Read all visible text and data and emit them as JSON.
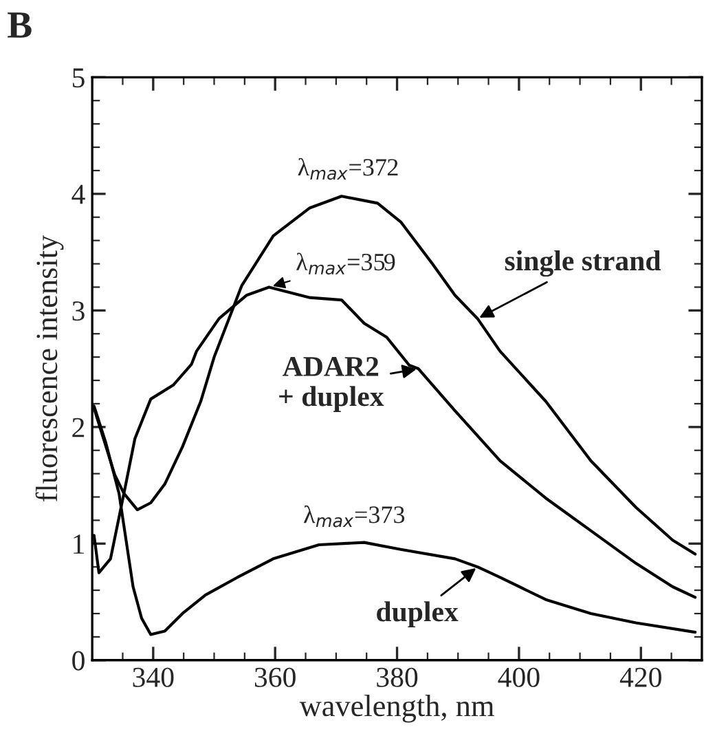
{
  "chart_data": {
    "type": "line",
    "title": "B",
    "xlabel": "wavelength, nm",
    "ylabel": "fluorescence intensity",
    "xlim": [
      330,
      430
    ],
    "xticks": [
      340,
      360,
      380,
      400,
      420
    ],
    "ylim": [
      0,
      5
    ],
    "yticks": [
      0,
      1,
      2,
      3,
      4,
      5
    ],
    "grid": false,
    "marker": "none",
    "line_style": "solid",
    "series": [
      {
        "name": "single strand",
        "color": "#000000",
        "x": [
          330.3,
          333.7,
          335.2,
          337.4,
          339.6,
          341.9,
          344.8,
          347.8,
          350.0,
          354.5,
          359.7,
          365.7,
          370.9,
          376.8,
          380.6,
          385.8,
          389.5,
          393.2,
          396.9,
          404.4,
          411.8,
          419.2,
          425.2,
          428.9
        ],
        "values": [
          2.16,
          1.59,
          1.43,
          1.29,
          1.35,
          1.51,
          1.83,
          2.22,
          2.6,
          3.21,
          3.64,
          3.88,
          3.98,
          3.92,
          3.76,
          3.4,
          3.13,
          2.93,
          2.65,
          2.22,
          1.71,
          1.31,
          1.03,
          0.91
        ]
      },
      {
        "name": "ADAR2\n+ duplex",
        "color": "#000000",
        "x": [
          330.3,
          331.1,
          333.0,
          335.2,
          337.0,
          339.6,
          343.3,
          346.3,
          347.1,
          350.8,
          355.3,
          359.0,
          365.7,
          370.9,
          374.6,
          378.3,
          382.0,
          383.5,
          389.5,
          396.9,
          404.4,
          411.8,
          419.2,
          425.2,
          428.9
        ],
        "values": [
          1.07,
          0.75,
          0.87,
          1.43,
          1.9,
          2.24,
          2.36,
          2.54,
          2.65,
          2.93,
          3.13,
          3.2,
          3.11,
          3.09,
          2.89,
          2.77,
          2.53,
          2.5,
          2.14,
          1.71,
          1.39,
          1.11,
          0.83,
          0.63,
          0.54
        ]
      },
      {
        "name": "duplex",
        "color": "#000000",
        "x": [
          330.3,
          332.2,
          334.4,
          336.7,
          338.1,
          339.6,
          341.9,
          344.8,
          348.6,
          353.8,
          359.7,
          367.2,
          374.6,
          380.6,
          389.5,
          393.2,
          396.9,
          404.4,
          411.8,
          419.2,
          428.9
        ],
        "values": [
          2.18,
          1.87,
          1.43,
          0.63,
          0.36,
          0.22,
          0.25,
          0.4,
          0.56,
          0.71,
          0.87,
          0.99,
          1.01,
          0.95,
          0.87,
          0.8,
          0.71,
          0.52,
          0.4,
          0.32,
          0.24
        ]
      }
    ],
    "annotations": [
      {
        "text": "λ$_{max}$=372",
        "x": 372,
        "y": 3.98
      },
      {
        "text": "λ$_{max}$=359",
        "x": 359,
        "y": 3.2
      },
      {
        "text": "λ$_{max}$=373",
        "x": 373,
        "y": 1.0
      }
    ]
  }
}
